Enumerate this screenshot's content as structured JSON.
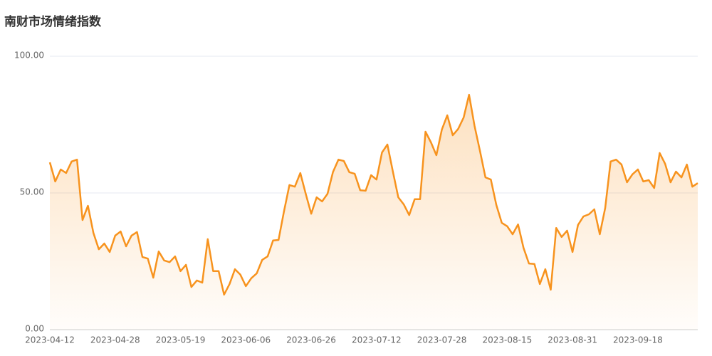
{
  "chart_data": {
    "type": "line",
    "title": "南财市场情绪指数",
    "categories": [
      "2023-04-12",
      null,
      null,
      null,
      null,
      null,
      null,
      null,
      null,
      null,
      null,
      null,
      "2023-04-28",
      null,
      null,
      null,
      null,
      null,
      null,
      null,
      null,
      null,
      null,
      null,
      "2023-05-19",
      null,
      null,
      null,
      null,
      null,
      null,
      null,
      null,
      null,
      null,
      null,
      "2023-06-06",
      null,
      null,
      null,
      null,
      null,
      null,
      null,
      null,
      null,
      null,
      null,
      "2023-06-26",
      null,
      null,
      null,
      null,
      null,
      null,
      null,
      null,
      null,
      null,
      null,
      "2023-07-12",
      null,
      null,
      null,
      null,
      null,
      null,
      null,
      null,
      null,
      null,
      null,
      "2023-07-28",
      null,
      null,
      null,
      null,
      null,
      null,
      null,
      null,
      null,
      null,
      null,
      "2023-08-15",
      null,
      null,
      null,
      null,
      null,
      null,
      null,
      null,
      null,
      null,
      null,
      "2023-08-31",
      null,
      null,
      null,
      null,
      null,
      null,
      null,
      null,
      null,
      null,
      null,
      "2023-09-18",
      null,
      null,
      null,
      null,
      null,
      null,
      null,
      null,
      null,
      null,
      null
    ],
    "values": [
      61.2,
      54.2,
      58.6,
      57.3,
      61.5,
      62.2,
      40.1,
      45.3,
      35.4,
      29.4,
      31.5,
      28.4,
      34.4,
      35.9,
      30.5,
      34.4,
      35.7,
      26.6,
      26.0,
      19.0,
      28.6,
      25.3,
      24.7,
      26.8,
      21.4,
      23.7,
      15.6,
      18.0,
      17.2,
      33.1,
      21.4,
      21.4,
      12.8,
      16.7,
      22.1,
      20.1,
      15.9,
      18.8,
      20.6,
      25.5,
      26.8,
      32.6,
      32.8,
      43.2,
      52.9,
      52.3,
      57.3,
      49.7,
      42.4,
      48.4,
      46.9,
      49.7,
      57.6,
      62.2,
      61.7,
      57.6,
      57.0,
      51.0,
      50.8,
      56.5,
      54.9,
      64.8,
      67.7,
      57.8,
      48.4,
      45.8,
      41.9,
      47.7,
      47.7,
      72.4,
      68.5,
      63.8,
      73.2,
      78.4,
      71.1,
      73.4,
      77.6,
      85.9,
      74.5,
      65.4,
      55.7,
      54.9,
      45.6,
      39.1,
      37.8,
      34.9,
      38.5,
      29.9,
      24.2,
      24.0,
      16.7,
      22.1,
      14.6,
      37.2,
      33.9,
      36.2,
      28.4,
      38.3,
      41.4,
      42.2,
      44.0,
      34.9,
      44.5,
      61.5,
      62.2,
      60.4,
      53.9,
      56.8,
      58.6,
      54.2,
      54.7,
      51.8,
      64.6,
      60.7,
      53.9,
      57.8,
      55.7,
      60.4,
      52.3,
      53.6
    ],
    "color": "#f7931e",
    "ylim": [
      0,
      100
    ],
    "yticks": [
      {
        "value": 0,
        "label": "0.00"
      },
      {
        "value": 50,
        "label": "50.00"
      },
      {
        "value": 100,
        "label": "100.00"
      }
    ],
    "grid": true,
    "area": true
  }
}
